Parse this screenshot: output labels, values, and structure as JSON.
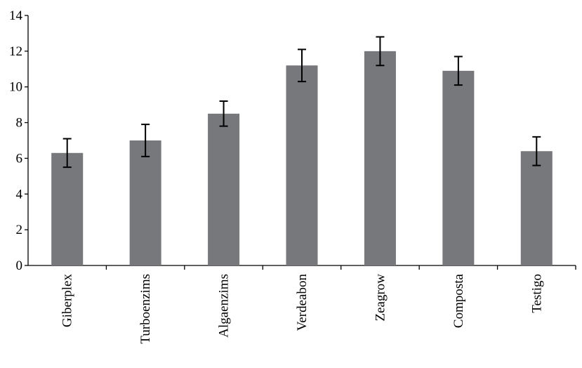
{
  "chart_data": {
    "type": "bar",
    "categories": [
      "Giberplex",
      "Turboenzims",
      "Algaenzims",
      "Verdeabon",
      "Zeagrow",
      "Composta",
      "Testigo"
    ],
    "values": [
      6.3,
      7.0,
      8.5,
      11.2,
      12.0,
      10.9,
      6.4
    ],
    "errors": [
      0.8,
      0.9,
      0.7,
      0.9,
      0.8,
      0.8,
      0.8
    ],
    "color": "#76787b",
    "ylim": [
      0,
      14
    ],
    "yticks": [
      0,
      2,
      4,
      6,
      8,
      10,
      12,
      14
    ],
    "grid": false
  }
}
